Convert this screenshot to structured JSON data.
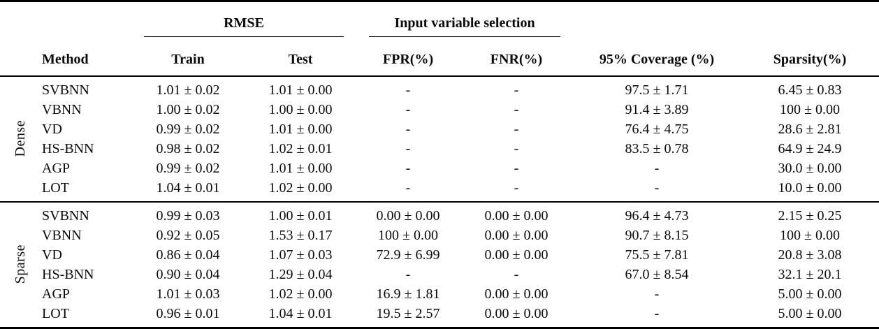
{
  "table": {
    "col_groups": [
      {
        "label": "RMSE"
      },
      {
        "label": "Input variable selection"
      }
    ],
    "headers": {
      "method": "Method",
      "train": "Train",
      "test": "Test",
      "fpr": "FPR(%)",
      "fnr": "FNR(%)",
      "coverage": "95% Coverage (%)",
      "sparsity": "Sparsity(%)"
    },
    "groups": [
      {
        "label": "Dense",
        "rows": [
          {
            "method": "SVBNN",
            "train": "1.01 ± 0.02",
            "test": "1.01 ± 0.00",
            "fpr": "-",
            "fnr": "-",
            "coverage": "97.5 ± 1.71",
            "sparsity": "6.45 ± 0.83"
          },
          {
            "method": "VBNN",
            "train": "1.00 ± 0.02",
            "test": "1.00 ± 0.00",
            "fpr": "-",
            "fnr": "-",
            "coverage": "91.4 ± 3.89",
            "sparsity": "100 ± 0.00"
          },
          {
            "method": "VD",
            "train": "0.99 ± 0.02",
            "test": "1.01 ± 0.00",
            "fpr": "-",
            "fnr": "-",
            "coverage": "76.4 ± 4.75",
            "sparsity": "28.6 ± 2.81"
          },
          {
            "method": "HS-BNN",
            "train": "0.98 ± 0.02",
            "test": "1.02 ± 0.01",
            "fpr": "-",
            "fnr": "-",
            "coverage": "83.5 ± 0.78",
            "sparsity": "64.9 ± 24.9"
          },
          {
            "method": "AGP",
            "train": "0.99 ± 0.02",
            "test": "1.01 ± 0.00",
            "fpr": "-",
            "fnr": "-",
            "coverage": "-",
            "sparsity": "30.0 ± 0.00"
          },
          {
            "method": "LOT",
            "train": "1.04 ± 0.01",
            "test": "1.02 ± 0.00",
            "fpr": "-",
            "fnr": "-",
            "coverage": "-",
            "sparsity": "10.0 ± 0.00"
          }
        ]
      },
      {
        "label": "Sparse",
        "rows": [
          {
            "method": "SVBNN",
            "train": "0.99 ± 0.03",
            "test": "1.00 ± 0.01",
            "fpr": "0.00 ± 0.00",
            "fnr": "0.00 ± 0.00",
            "coverage": "96.4 ± 4.73",
            "sparsity": "2.15 ± 0.25"
          },
          {
            "method": "VBNN",
            "train": "0.92 ± 0.05",
            "test": "1.53 ± 0.17",
            "fpr": "100 ± 0.00",
            "fnr": "0.00 ± 0.00",
            "coverage": "90.7 ± 8.15",
            "sparsity": "100 ± 0.00"
          },
          {
            "method": "VD",
            "train": "0.86 ± 0.04",
            "test": "1.07 ± 0.03",
            "fpr": "72.9 ± 6.99",
            "fnr": "0.00 ± 0.00",
            "coverage": "75.5 ± 7.81",
            "sparsity": "20.8 ± 3.08"
          },
          {
            "method": "HS-BNN",
            "train": "0.90 ± 0.04",
            "test": "1.29 ± 0.04",
            "fpr": "-",
            "fnr": "-",
            "coverage": "67.0 ± 8.54",
            "sparsity": "32.1 ± 20.1"
          },
          {
            "method": "AGP",
            "train": "1.01 ± 0.03",
            "test": "1.02 ± 0.00",
            "fpr": "16.9 ± 1.81",
            "fnr": "0.00 ± 0.00",
            "coverage": "-",
            "sparsity": "5.00 ± 0.00"
          },
          {
            "method": "LOT",
            "train": "0.96 ± 0.01",
            "test": "1.04 ± 0.01",
            "fpr": "19.5 ± 2.57",
            "fnr": "0.00 ± 0.00",
            "coverage": "-",
            "sparsity": "5.00 ± 0.00"
          }
        ]
      }
    ]
  }
}
